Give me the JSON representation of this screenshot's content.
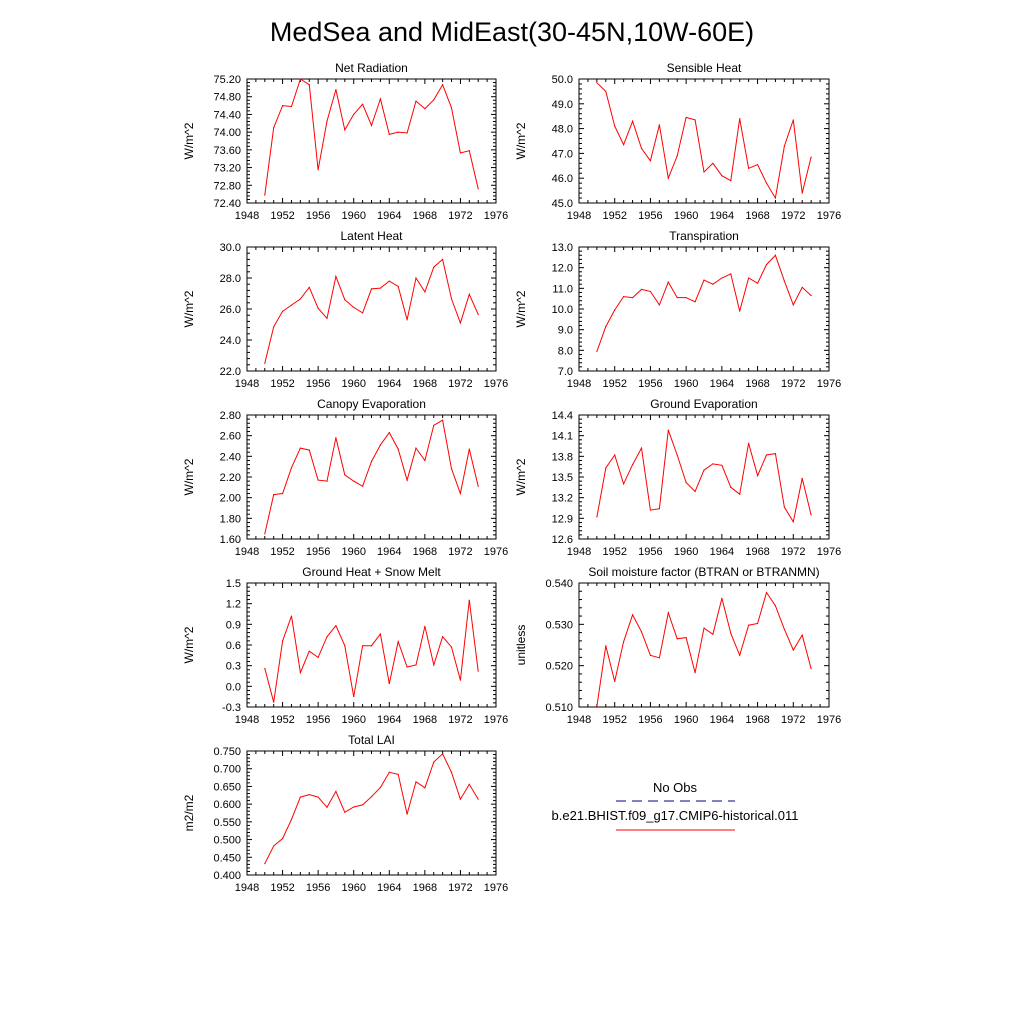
{
  "title": "MedSea and MidEast(30-45N,10W-60E)",
  "colors": {
    "model_line": "#ff0000",
    "obs_line": "#00008b",
    "frame": "#000000"
  },
  "legend": {
    "obs_label": "No Obs",
    "model_label": "b.e21.BHIST.f09_g17.CMIP6-historical.011"
  },
  "chart_data": [
    {
      "type": "line",
      "title": "Net Radiation",
      "ylabel": "W/m^2",
      "xlim": [
        1948,
        1976
      ],
      "x_ticks": [
        1948,
        1952,
        1956,
        1960,
        1964,
        1968,
        1972,
        1976
      ],
      "ylim": [
        72.4,
        75.2
      ],
      "y_ticks": [
        "72.40",
        "72.80",
        "73.20",
        "73.60",
        "74.00",
        "74.40",
        "74.80",
        "75.20"
      ],
      "x": [
        1950,
        1951,
        1952,
        1953,
        1954,
        1955,
        1956,
        1957,
        1958,
        1959,
        1960,
        1961,
        1962,
        1963,
        1964,
        1965,
        1966,
        1967,
        1968,
        1969,
        1970,
        1971,
        1972,
        1973,
        1974
      ],
      "series": [
        {
          "values": [
            72.58,
            74.1,
            74.6,
            74.58,
            75.2,
            75.07,
            73.15,
            74.25,
            74.96,
            74.05,
            74.4,
            74.63,
            74.15,
            74.75,
            73.95,
            74.0,
            73.98,
            74.7,
            74.53,
            74.73,
            75.07,
            74.55,
            73.53,
            73.58,
            72.72
          ]
        }
      ]
    },
    {
      "type": "line",
      "title": "Sensible Heat",
      "ylabel": "W/m^2",
      "xlim": [
        1948,
        1976
      ],
      "x_ticks": [
        1948,
        1952,
        1956,
        1960,
        1964,
        1968,
        1972,
        1976
      ],
      "ylim": [
        45.0,
        50.0
      ],
      "y_ticks": [
        "45.0",
        "46.0",
        "47.0",
        "48.0",
        "49.0",
        "50.0"
      ],
      "x": [
        1950,
        1951,
        1952,
        1953,
        1954,
        1955,
        1956,
        1957,
        1958,
        1959,
        1960,
        1961,
        1962,
        1963,
        1964,
        1965,
        1966,
        1967,
        1968,
        1969,
        1970,
        1971,
        1972,
        1973,
        1974
      ],
      "series": [
        {
          "values": [
            49.85,
            49.5,
            48.1,
            47.35,
            48.3,
            47.2,
            46.7,
            48.15,
            46.0,
            46.9,
            48.45,
            48.35,
            46.25,
            46.6,
            46.1,
            45.9,
            48.4,
            46.4,
            46.55,
            45.8,
            45.2,
            47.3,
            48.35,
            45.4,
            46.85
          ]
        }
      ]
    },
    {
      "type": "line",
      "title": "Latent Heat",
      "ylabel": "W/m^2",
      "xlim": [
        1948,
        1976
      ],
      "x_ticks": [
        1948,
        1952,
        1956,
        1960,
        1964,
        1968,
        1972,
        1976
      ],
      "ylim": [
        22.0,
        30.0
      ],
      "y_ticks": [
        "22.0",
        "24.0",
        "26.0",
        "28.0",
        "30.0"
      ],
      "x": [
        1950,
        1951,
        1952,
        1953,
        1954,
        1955,
        1956,
        1957,
        1958,
        1959,
        1960,
        1961,
        1962,
        1963,
        1964,
        1965,
        1966,
        1967,
        1968,
        1969,
        1970,
        1971,
        1972,
        1973,
        1974
      ],
      "series": [
        {
          "values": [
            22.5,
            24.85,
            25.85,
            26.25,
            26.65,
            27.4,
            26.05,
            25.4,
            28.1,
            26.6,
            26.1,
            25.75,
            27.3,
            27.35,
            27.8,
            27.45,
            25.3,
            28.0,
            27.1,
            28.7,
            29.2,
            26.65,
            25.1,
            26.95,
            25.65
          ]
        }
      ]
    },
    {
      "type": "line",
      "title": "Transpiration",
      "ylabel": "W/m^2",
      "xlim": [
        1948,
        1976
      ],
      "x_ticks": [
        1948,
        1952,
        1956,
        1960,
        1964,
        1968,
        1972,
        1976
      ],
      "ylim": [
        7.0,
        13.0
      ],
      "y_ticks": [
        "7.0",
        "8.0",
        "9.0",
        "10.0",
        "11.0",
        "12.0",
        "13.0"
      ],
      "x": [
        1950,
        1951,
        1952,
        1953,
        1954,
        1955,
        1956,
        1957,
        1958,
        1959,
        1960,
        1961,
        1962,
        1963,
        1964,
        1965,
        1966,
        1967,
        1968,
        1969,
        1970,
        1971,
        1972,
        1973,
        1974
      ],
      "series": [
        {
          "values": [
            7.95,
            9.15,
            9.95,
            10.6,
            10.55,
            10.95,
            10.85,
            10.2,
            11.3,
            10.55,
            10.55,
            10.35,
            11.4,
            11.2,
            11.5,
            11.7,
            9.9,
            11.5,
            11.25,
            12.15,
            12.6,
            11.35,
            10.2,
            11.05,
            10.65
          ]
        }
      ]
    },
    {
      "type": "line",
      "title": "Canopy Evaporation",
      "ylabel": "W/m^2",
      "xlim": [
        1948,
        1976
      ],
      "x_ticks": [
        1948,
        1952,
        1956,
        1960,
        1964,
        1968,
        1972,
        1976
      ],
      "ylim": [
        1.6,
        2.8
      ],
      "y_ticks": [
        "1.60",
        "1.80",
        "2.00",
        "2.20",
        "2.40",
        "2.60",
        "2.80"
      ],
      "x": [
        1950,
        1951,
        1952,
        1953,
        1954,
        1955,
        1956,
        1957,
        1958,
        1959,
        1960,
        1961,
        1962,
        1963,
        1964,
        1965,
        1966,
        1967,
        1968,
        1969,
        1970,
        1971,
        1972,
        1973,
        1974
      ],
      "series": [
        {
          "values": [
            1.65,
            2.03,
            2.04,
            2.29,
            2.48,
            2.46,
            2.17,
            2.16,
            2.58,
            2.22,
            2.16,
            2.11,
            2.35,
            2.51,
            2.63,
            2.47,
            2.17,
            2.48,
            2.36,
            2.7,
            2.75,
            2.28,
            2.04,
            2.47,
            2.11
          ]
        }
      ]
    },
    {
      "type": "line",
      "title": "Ground Evaporation",
      "ylabel": "W/m^2",
      "xlim": [
        1948,
        1976
      ],
      "x_ticks": [
        1948,
        1952,
        1956,
        1960,
        1964,
        1968,
        1972,
        1976
      ],
      "ylim": [
        12.6,
        14.4
      ],
      "y_ticks": [
        "12.6",
        "12.9",
        "13.2",
        "13.5",
        "13.8",
        "14.1",
        "14.4"
      ],
      "x": [
        1950,
        1951,
        1952,
        1953,
        1954,
        1955,
        1956,
        1957,
        1958,
        1959,
        1960,
        1961,
        1962,
        1963,
        1964,
        1965,
        1966,
        1967,
        1968,
        1969,
        1970,
        1971,
        1972,
        1973,
        1974
      ],
      "series": [
        {
          "values": [
            12.92,
            13.63,
            13.82,
            13.4,
            13.68,
            13.92,
            13.02,
            13.04,
            14.18,
            13.82,
            13.42,
            13.29,
            13.6,
            13.69,
            13.67,
            13.35,
            13.25,
            13.99,
            13.52,
            13.82,
            13.84,
            13.06,
            12.85,
            13.48,
            12.95
          ]
        }
      ]
    },
    {
      "type": "line",
      "title": "Ground Heat + Snow Melt",
      "ylabel": "W/m^2",
      "xlim": [
        1948,
        1976
      ],
      "x_ticks": [
        1948,
        1952,
        1956,
        1960,
        1964,
        1968,
        1972,
        1976
      ],
      "ylim": [
        -0.3,
        1.5
      ],
      "y_ticks": [
        "-0.3",
        "0.0",
        "0.3",
        "0.6",
        "0.9",
        "1.2",
        "1.5"
      ],
      "x": [
        1950,
        1951,
        1952,
        1953,
        1954,
        1955,
        1956,
        1957,
        1958,
        1959,
        1960,
        1961,
        1962,
        1963,
        1964,
        1965,
        1966,
        1967,
        1968,
        1969,
        1970,
        1971,
        1972,
        1973,
        1974
      ],
      "series": [
        {
          "values": [
            0.26,
            -0.23,
            0.66,
            1.02,
            0.2,
            0.51,
            0.42,
            0.72,
            0.88,
            0.59,
            -0.15,
            0.59,
            0.59,
            0.76,
            0.04,
            0.65,
            0.28,
            0.31,
            0.87,
            0.31,
            0.72,
            0.57,
            0.09,
            1.25,
            0.22
          ]
        }
      ]
    },
    {
      "type": "line",
      "title": "Soil moisture factor (BTRAN or BTRANMN)",
      "ylabel": "unitless",
      "xlim": [
        1948,
        1976
      ],
      "x_ticks": [
        1948,
        1952,
        1956,
        1960,
        1964,
        1968,
        1972,
        1976
      ],
      "ylim": [
        0.51,
        0.54
      ],
      "y_ticks": [
        "0.510",
        "0.520",
        "0.530",
        "0.540"
      ],
      "x": [
        1950,
        1951,
        1952,
        1953,
        1954,
        1955,
        1956,
        1957,
        1958,
        1959,
        1960,
        1961,
        1962,
        1963,
        1964,
        1965,
        1966,
        1967,
        1968,
        1969,
        1970,
        1971,
        1972,
        1973,
        1974
      ],
      "series": [
        {
          "values": [
            0.5102,
            0.5248,
            0.5162,
            0.5258,
            0.5323,
            0.5282,
            0.5225,
            0.5219,
            0.5328,
            0.5265,
            0.5268,
            0.5183,
            0.5291,
            0.5276,
            0.5363,
            0.5278,
            0.5225,
            0.5298,
            0.5302,
            0.5377,
            0.5345,
            0.5288,
            0.5238,
            0.5274,
            0.5193
          ]
        }
      ]
    },
    {
      "type": "line",
      "title": "Total LAI",
      "ylabel": "m2/m2",
      "xlim": [
        1948,
        1976
      ],
      "x_ticks": [
        1948,
        1952,
        1956,
        1960,
        1964,
        1968,
        1972,
        1976
      ],
      "ylim": [
        0.4,
        0.75
      ],
      "y_ticks": [
        "0.400",
        "0.450",
        "0.500",
        "0.550",
        "0.600",
        "0.650",
        "0.700",
        "0.750"
      ],
      "x": [
        1950,
        1951,
        1952,
        1953,
        1954,
        1955,
        1956,
        1957,
        1958,
        1959,
        1960,
        1961,
        1962,
        1963,
        1964,
        1965,
        1966,
        1967,
        1968,
        1969,
        1970,
        1971,
        1972,
        1973,
        1974
      ],
      "series": [
        {
          "values": [
            0.432,
            0.482,
            0.503,
            0.557,
            0.62,
            0.627,
            0.62,
            0.591,
            0.636,
            0.577,
            0.592,
            0.598,
            0.621,
            0.647,
            0.69,
            0.684,
            0.572,
            0.663,
            0.646,
            0.719,
            0.742,
            0.69,
            0.614,
            0.656,
            0.614
          ]
        }
      ]
    }
  ]
}
